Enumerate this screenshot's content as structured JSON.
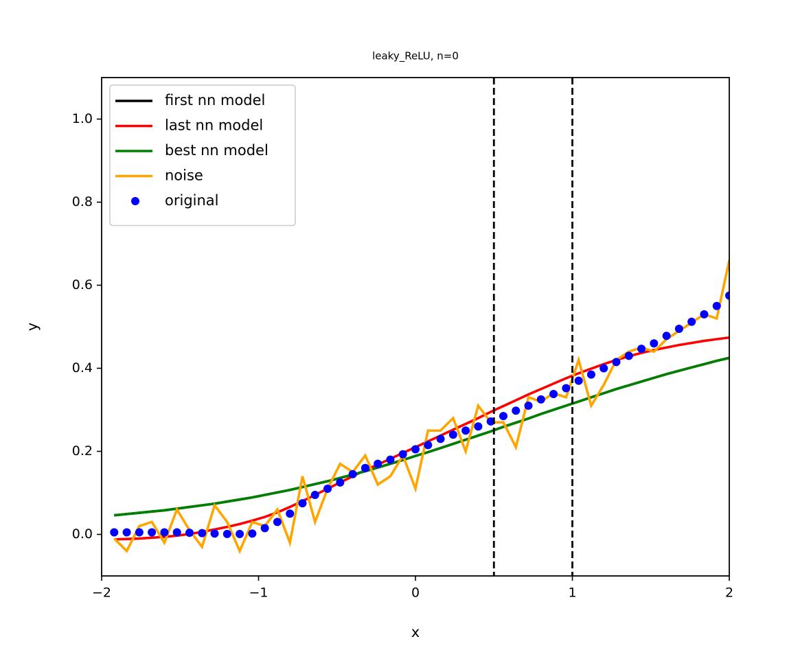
{
  "chart_data": {
    "type": "line",
    "title": "leaky_ReLU, n=0",
    "xlabel": "x",
    "ylabel": "y",
    "x": [
      -1.92,
      -1.84,
      -1.76,
      -1.68,
      -1.6,
      -1.52,
      -1.44,
      -1.36,
      -1.28,
      -1.2,
      -1.12,
      -1.04,
      -0.96,
      -0.88,
      -0.8,
      -0.72,
      -0.64,
      -0.56,
      -0.48,
      -0.4,
      -0.32,
      -0.24,
      -0.16,
      -0.08,
      0,
      0.08,
      0.16,
      0.24,
      0.32,
      0.4,
      0.48,
      0.56,
      0.64,
      0.72,
      0.8,
      0.88,
      0.96,
      1.04,
      1.12,
      1.2,
      1.28,
      1.36,
      1.44,
      1.52,
      1.6,
      1.68,
      1.76,
      1.84,
      1.92,
      2.0
    ],
    "series": [
      {
        "name": "first nn model",
        "color": "#000000",
        "values": [
          0.046,
          0.049,
          0.052,
          0.055,
          0.058,
          0.062,
          0.066,
          0.07,
          0.074,
          0.079,
          0.084,
          0.089,
          0.095,
          0.101,
          0.107,
          0.114,
          0.121,
          0.128,
          0.136,
          0.144,
          0.152,
          0.161,
          0.17,
          0.179,
          0.189,
          0.198,
          0.208,
          0.218,
          0.228,
          0.238,
          0.248,
          0.259,
          0.269,
          0.279,
          0.29,
          0.3,
          0.31,
          0.32,
          0.33,
          0.34,
          0.35,
          0.359,
          0.368,
          0.377,
          0.386,
          0.394,
          0.402,
          0.41,
          0.418,
          0.425
        ]
      },
      {
        "name": "last nn model",
        "color": "#ff0000",
        "values": [
          -0.012,
          -0.011,
          -0.01,
          -0.008,
          -0.006,
          -0.003,
          0.001,
          0.006,
          0.012,
          0.018,
          0.025,
          0.033,
          0.042,
          0.053,
          0.066,
          0.08,
          0.095,
          0.11,
          0.125,
          0.14,
          0.155,
          0.168,
          0.182,
          0.196,
          0.21,
          0.224,
          0.238,
          0.252,
          0.266,
          0.28,
          0.295,
          0.309,
          0.323,
          0.337,
          0.35,
          0.363,
          0.376,
          0.388,
          0.399,
          0.41,
          0.42,
          0.429,
          0.437,
          0.444,
          0.45,
          0.456,
          0.461,
          0.466,
          0.47,
          0.474
        ]
      },
      {
        "name": "best nn model",
        "color": "#008000",
        "values": [
          0.046,
          0.049,
          0.052,
          0.055,
          0.058,
          0.062,
          0.066,
          0.07,
          0.074,
          0.079,
          0.084,
          0.089,
          0.095,
          0.101,
          0.107,
          0.114,
          0.121,
          0.128,
          0.136,
          0.144,
          0.152,
          0.161,
          0.17,
          0.179,
          0.189,
          0.198,
          0.208,
          0.218,
          0.228,
          0.238,
          0.248,
          0.259,
          0.269,
          0.279,
          0.29,
          0.3,
          0.31,
          0.32,
          0.33,
          0.34,
          0.35,
          0.359,
          0.368,
          0.377,
          0.386,
          0.394,
          0.402,
          0.41,
          0.418,
          0.425
        ]
      },
      {
        "name": "noise",
        "color": "#ffa500",
        "values": [
          -0.01,
          -0.04,
          0.02,
          0.03,
          -0.02,
          0.06,
          0.01,
          -0.03,
          0.07,
          0.03,
          -0.04,
          0.03,
          0.02,
          0.06,
          -0.02,
          0.14,
          0.03,
          0.11,
          0.17,
          0.15,
          0.19,
          0.12,
          0.14,
          0.19,
          0.11,
          0.25,
          0.25,
          0.28,
          0.2,
          0.31,
          0.27,
          0.27,
          0.21,
          0.33,
          0.32,
          0.34,
          0.33,
          0.42,
          0.31,
          0.36,
          0.42,
          0.44,
          0.45,
          0.44,
          0.47,
          0.49,
          0.51,
          0.53,
          0.52,
          0.66
        ]
      },
      {
        "name": "original",
        "color": "#0000ff",
        "marker": "o",
        "values": [
          0.005,
          0.005,
          0.005,
          0.005,
          0.005,
          0.005,
          0.004,
          0.003,
          0.002,
          0.001,
          0.001,
          0.002,
          0.015,
          0.03,
          0.05,
          0.075,
          0.095,
          0.11,
          0.125,
          0.145,
          0.16,
          0.17,
          0.18,
          0.193,
          0.205,
          0.215,
          0.23,
          0.24,
          0.25,
          0.26,
          0.272,
          0.285,
          0.298,
          0.31,
          0.325,
          0.338,
          0.352,
          0.37,
          0.385,
          0.4,
          0.415,
          0.43,
          0.447,
          0.46,
          0.478,
          0.495,
          0.512,
          0.53,
          0.55,
          0.575
        ]
      }
    ],
    "vlines": [
      0.5,
      1
    ],
    "xlim": [
      -2,
      2
    ],
    "ylim": [
      -0.1,
      1.1
    ],
    "xticks": [
      {
        "value": -2,
        "label": "−2"
      },
      {
        "value": -1,
        "label": "−1"
      },
      0,
      1,
      2
    ],
    "yticks": [
      {
        "value": 0,
        "label": "0.0"
      },
      0.2,
      0.4,
      0.6,
      0.8,
      {
        "value": 1,
        "label": "1.0"
      }
    ],
    "legend": "upper left"
  }
}
